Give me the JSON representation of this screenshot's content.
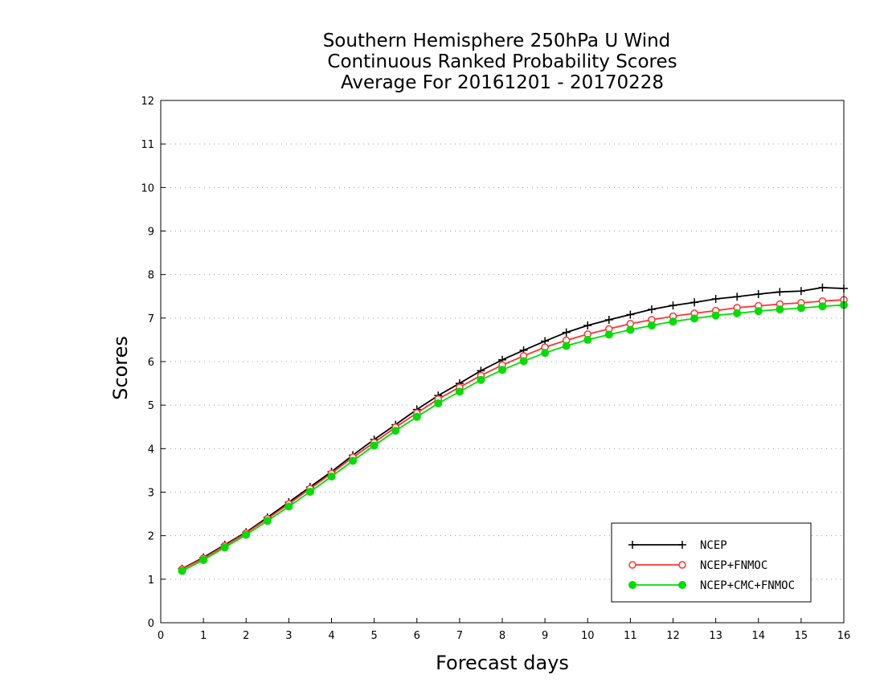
{
  "chart_data": {
    "type": "line",
    "title": [
      "Southern Hemisphere 250hPa U Wind",
      "Continuous Ranked Probability Scores",
      "Average For 20161201 - 20170228"
    ],
    "xlabel": "Forecast days",
    "ylabel": "Scores",
    "xlim": [
      0,
      16
    ],
    "ylim": [
      0,
      12
    ],
    "xticks": [
      0,
      1,
      2,
      3,
      4,
      5,
      6,
      7,
      8,
      9,
      10,
      11,
      12,
      13,
      14,
      15,
      16
    ],
    "yticks": [
      0,
      1,
      2,
      3,
      4,
      5,
      6,
      7,
      8,
      9,
      10,
      11,
      12
    ],
    "grid": "horizontal-dotted",
    "legend_position": "bottom-right",
    "x": [
      0.5,
      1,
      1.5,
      2,
      2.5,
      3,
      3.5,
      4,
      4.5,
      5,
      5.5,
      6,
      6.5,
      7,
      7.5,
      8,
      8.5,
      9,
      9.5,
      10,
      10.5,
      11,
      11.5,
      12,
      12.5,
      13,
      13.5,
      14,
      14.5,
      15,
      15.5,
      16
    ],
    "series": [
      {
        "name": "NCEP",
        "color": "#000000",
        "marker": "plus",
        "values": [
          1.24,
          1.5,
          1.79,
          2.08,
          2.42,
          2.77,
          3.12,
          3.47,
          3.85,
          4.21,
          4.55,
          4.9,
          5.22,
          5.5,
          5.79,
          6.04,
          6.26,
          6.47,
          6.67,
          6.83,
          6.96,
          7.08,
          7.2,
          7.29,
          7.36,
          7.44,
          7.49,
          7.55,
          7.6,
          7.62,
          7.7,
          7.68
        ]
      },
      {
        "name": "NCEP+FNMOC",
        "color": "#ff3333",
        "marker": "open-circle",
        "values": [
          1.23,
          1.48,
          1.77,
          2.06,
          2.39,
          2.73,
          3.08,
          3.43,
          3.8,
          4.14,
          4.49,
          4.82,
          5.14,
          5.41,
          5.68,
          5.92,
          6.13,
          6.33,
          6.49,
          6.63,
          6.75,
          6.87,
          6.96,
          7.04,
          7.11,
          7.17,
          7.24,
          7.28,
          7.32,
          7.35,
          7.39,
          7.42
        ]
      },
      {
        "name": "NCEP+CMC+FNMOC",
        "color": "#00dd00",
        "marker": "filled-circle",
        "values": [
          1.19,
          1.44,
          1.73,
          2.02,
          2.34,
          2.67,
          3.01,
          3.36,
          3.72,
          4.07,
          4.41,
          4.73,
          5.04,
          5.31,
          5.58,
          5.81,
          6.01,
          6.2,
          6.36,
          6.5,
          6.62,
          6.73,
          6.83,
          6.92,
          6.99,
          7.06,
          7.11,
          7.16,
          7.2,
          7.23,
          7.27,
          7.3
        ]
      }
    ]
  }
}
